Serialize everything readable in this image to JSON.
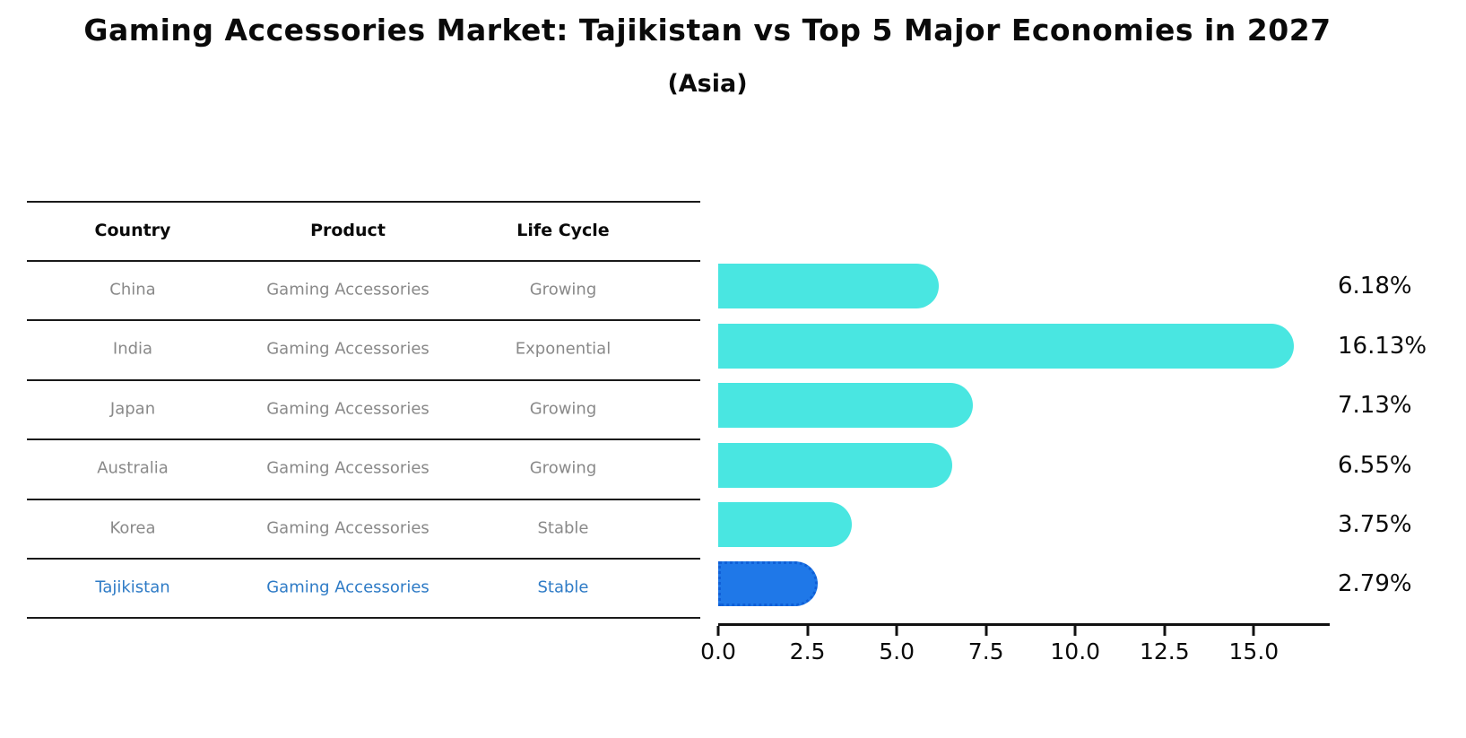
{
  "title": "Gaming Accessories Market: Tajikistan vs Top 5 Major Economies in 2027",
  "subtitle": "(Asia)",
  "table": {
    "headers": [
      "Country",
      "Product",
      "Life Cycle"
    ],
    "rows": [
      {
        "country": "China",
        "product": "Gaming Accessories",
        "life_cycle": "Growing"
      },
      {
        "country": "India",
        "product": "Gaming Accessories",
        "life_cycle": "Exponential"
      },
      {
        "country": "Japan",
        "product": "Gaming Accessories",
        "life_cycle": "Growing"
      },
      {
        "country": "Australia",
        "product": "Gaming Accessories",
        "life_cycle": "Growing"
      },
      {
        "country": "Korea",
        "product": "Gaming Accessories",
        "life_cycle": "Stable"
      },
      {
        "country": "Tajikistan",
        "product": "Gaming Accessories",
        "life_cycle": "Stable"
      }
    ],
    "highlighted_row": "Tajikistan"
  },
  "chart_data": {
    "type": "bar",
    "orientation": "horizontal",
    "title": "Gaming Accessories Market: Tajikistan vs Top 5 Major Economies in 2027",
    "subtitle": "(Asia)",
    "categories": [
      "China",
      "India",
      "Japan",
      "Australia",
      "Korea",
      "Tajikistan"
    ],
    "values": [
      6.18,
      16.13,
      7.13,
      6.55,
      3.75,
      2.79
    ],
    "value_labels": [
      "6.18%",
      "16.13%",
      "7.13%",
      "6.55%",
      "3.75%",
      "2.79%"
    ],
    "x_ticks": [
      0.0,
      2.5,
      5.0,
      7.5,
      10.0,
      12.5,
      15.0
    ],
    "x_tick_labels": [
      "0.0",
      "2.5",
      "5.0",
      "7.5",
      "10.0",
      "12.5",
      "15.0"
    ],
    "xlim": [
      0,
      17.1
    ],
    "grid": false,
    "legend": "none",
    "colors": {
      "bar_default": "#49e6e1",
      "bar_highlight": "#1f78e8",
      "bar_highlight_border": "#0f5fd7",
      "highlight_text": "#2e7bc6",
      "table_text": "#898989",
      "header_text": "#0a0a0a"
    }
  }
}
